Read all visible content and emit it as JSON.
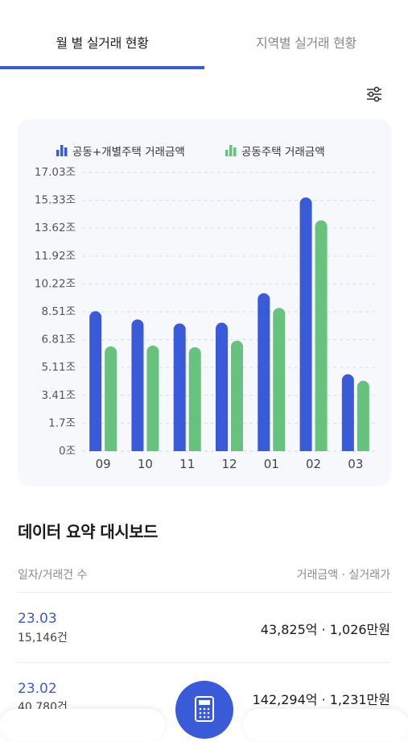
{
  "tabs": {
    "monthly": "월 별 실거래 현황",
    "regional": "지역별 실거래 현황"
  },
  "icons": {
    "filter": "sliders-icon",
    "calculator": "calculator-icon"
  },
  "colors": {
    "accent": "#3a5bd9",
    "series_blue": "#3a5bd9",
    "series_green": "#66c27c"
  },
  "chart_data": {
    "type": "bar",
    "categories": [
      "09",
      "10",
      "11",
      "12",
      "01",
      "02",
      "03"
    ],
    "series": [
      {
        "name": "공동+개별주택 거래금액",
        "values": [
          8.55,
          8.05,
          7.8,
          7.85,
          9.65,
          15.5,
          4.7
        ]
      },
      {
        "name": "공동주택 거래금액",
        "values": [
          6.4,
          6.45,
          6.35,
          6.75,
          8.75,
          14.1,
          4.3
        ]
      }
    ],
    "y_ticks": [
      "0조",
      "1.7조",
      "3.41조",
      "5.11조",
      "6.81조",
      "8.51조",
      "10.22조",
      "11.92조",
      "13.62조",
      "15.33조",
      "17.03조"
    ],
    "ylim": [
      0,
      17.03
    ],
    "grid": true,
    "legend_position": "top"
  },
  "dashboard": {
    "title": "데이터 요약 대시보드",
    "col_left": "일자/거래건 수",
    "col_right": "거래금액 · 실거래가",
    "rows": [
      {
        "date": "23.03",
        "count": "15,146건",
        "value": "43,825억 · 1,026만원"
      },
      {
        "date": "23.02",
        "count": "40,780건",
        "value": "142,294억 · 1,231만원"
      }
    ]
  }
}
